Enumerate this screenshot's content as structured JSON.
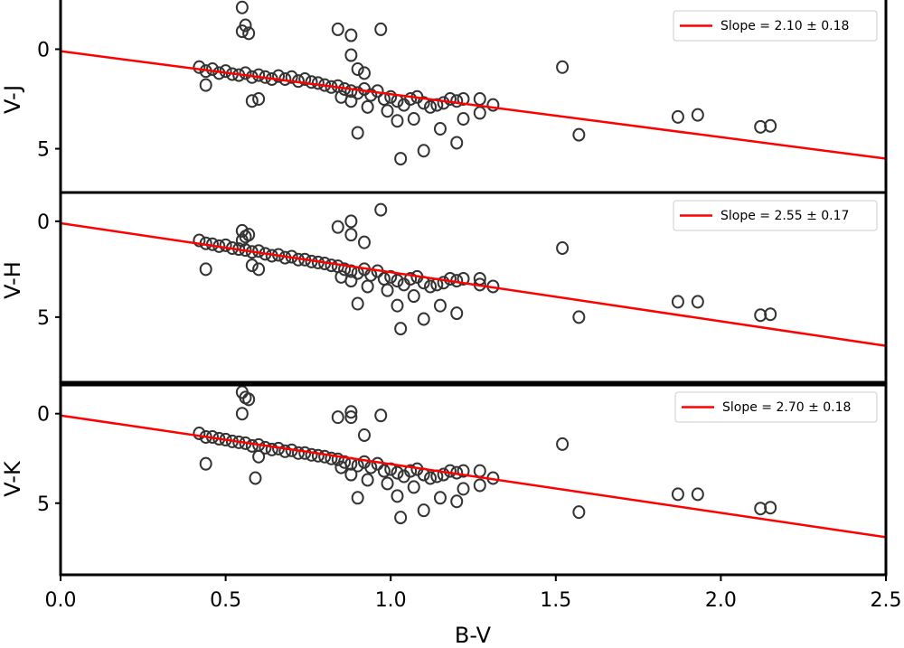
{
  "chart_data": {
    "type": "scatter",
    "layout": "3 vertically stacked panels sharing x-axis",
    "xlabel": "B-V",
    "xlim": [
      0.0,
      2.5
    ],
    "xticks": [
      "0.0",
      "0.5",
      "1.0",
      "1.5",
      "2.0",
      "2.5"
    ],
    "panels": [
      {
        "ylabel": "V-J",
        "ylim": [
          7.2,
          -2.7
        ],
        "yticks": [
          "0",
          "5"
        ],
        "legend": "Slope = 2.10 ± 0.18",
        "legend_placement": "top-right",
        "fit_line": {
          "x": [
            0.0,
            2.5
          ],
          "y": [
            0.1,
            5.5
          ]
        },
        "points": [
          [
            0.55,
            -2.1
          ],
          [
            0.56,
            -1.2
          ],
          [
            0.55,
            -0.9
          ],
          [
            0.57,
            -0.8
          ],
          [
            0.84,
            -1.0
          ],
          [
            0.88,
            -0.7
          ],
          [
            0.97,
            -1.0
          ],
          [
            0.88,
            0.3
          ],
          [
            0.9,
            1.0
          ],
          [
            0.92,
            1.2
          ],
          [
            0.42,
            0.9
          ],
          [
            0.44,
            1.1
          ],
          [
            0.46,
            1.0
          ],
          [
            0.44,
            1.8
          ],
          [
            0.48,
            1.2
          ],
          [
            0.5,
            1.1
          ],
          [
            0.52,
            1.25
          ],
          [
            0.54,
            1.3
          ],
          [
            0.56,
            1.2
          ],
          [
            0.58,
            1.4
          ],
          [
            0.6,
            1.3
          ],
          [
            0.62,
            1.4
          ],
          [
            0.64,
            1.5
          ],
          [
            0.66,
            1.35
          ],
          [
            0.68,
            1.5
          ],
          [
            0.7,
            1.4
          ],
          [
            0.72,
            1.6
          ],
          [
            0.74,
            1.5
          ],
          [
            0.76,
            1.65
          ],
          [
            0.78,
            1.7
          ],
          [
            0.8,
            1.8
          ],
          [
            0.82,
            1.9
          ],
          [
            0.84,
            1.85
          ],
          [
            0.86,
            2.0
          ],
          [
            0.88,
            2.1
          ],
          [
            0.9,
            2.2
          ],
          [
            0.92,
            2.0
          ],
          [
            0.94,
            2.3
          ],
          [
            0.96,
            2.1
          ],
          [
            0.98,
            2.5
          ],
          [
            1.0,
            2.4
          ],
          [
            1.02,
            2.6
          ],
          [
            1.04,
            2.8
          ],
          [
            1.06,
            2.5
          ],
          [
            1.08,
            2.4
          ],
          [
            1.1,
            2.7
          ],
          [
            1.12,
            2.9
          ],
          [
            1.14,
            2.8
          ],
          [
            1.16,
            2.7
          ],
          [
            1.18,
            2.5
          ],
          [
            1.2,
            2.6
          ],
          [
            1.22,
            2.5
          ],
          [
            0.6,
            2.5
          ],
          [
            0.58,
            2.6
          ],
          [
            0.85,
            2.4
          ],
          [
            0.88,
            2.6
          ],
          [
            0.93,
            2.9
          ],
          [
            0.99,
            3.1
          ],
          [
            1.02,
            3.6
          ],
          [
            1.07,
            3.5
          ],
          [
            1.15,
            4.0
          ],
          [
            1.2,
            4.7
          ],
          [
            1.1,
            5.1
          ],
          [
            1.03,
            5.5
          ],
          [
            0.9,
            4.2
          ],
          [
            1.22,
            3.5
          ],
          [
            1.27,
            3.2
          ],
          [
            1.27,
            2.5
          ],
          [
            1.31,
            2.8
          ],
          [
            1.52,
            0.9
          ],
          [
            1.57,
            4.3
          ],
          [
            1.87,
            3.4
          ],
          [
            1.93,
            3.3
          ],
          [
            2.12,
            3.9
          ],
          [
            2.15,
            3.85
          ]
        ]
      },
      {
        "ylabel": "V-H",
        "ylim": [
          8.4,
          -1.5
        ],
        "yticks": [
          "0",
          "5"
        ],
        "legend": "Slope = 2.55 ± 0.17",
        "legend_placement": "top-right",
        "fit_line": {
          "x": [
            0.0,
            2.5
          ],
          "y": [
            0.1,
            6.5
          ]
        },
        "points": [
          [
            0.55,
            0.5
          ],
          [
            0.56,
            0.8
          ],
          [
            0.57,
            0.7
          ],
          [
            0.55,
            1.0
          ],
          [
            0.84,
            0.3
          ],
          [
            0.88,
            0.0
          ],
          [
            0.97,
            -0.6
          ],
          [
            0.88,
            0.7
          ],
          [
            0.92,
            1.1
          ],
          [
            0.42,
            1.0
          ],
          [
            0.44,
            1.15
          ],
          [
            0.46,
            1.2
          ],
          [
            0.44,
            2.5
          ],
          [
            0.48,
            1.3
          ],
          [
            0.5,
            1.25
          ],
          [
            0.52,
            1.4
          ],
          [
            0.54,
            1.45
          ],
          [
            0.56,
            1.5
          ],
          [
            0.58,
            1.6
          ],
          [
            0.6,
            1.55
          ],
          [
            0.62,
            1.7
          ],
          [
            0.64,
            1.8
          ],
          [
            0.66,
            1.75
          ],
          [
            0.68,
            1.9
          ],
          [
            0.7,
            1.85
          ],
          [
            0.72,
            2.0
          ],
          [
            0.74,
            2.0
          ],
          [
            0.76,
            2.1
          ],
          [
            0.78,
            2.15
          ],
          [
            0.8,
            2.2
          ],
          [
            0.82,
            2.3
          ],
          [
            0.84,
            2.35
          ],
          [
            0.86,
            2.5
          ],
          [
            0.88,
            2.6
          ],
          [
            0.9,
            2.7
          ],
          [
            0.92,
            2.5
          ],
          [
            0.94,
            2.8
          ],
          [
            0.96,
            2.6
          ],
          [
            0.98,
            3.0
          ],
          [
            1.0,
            2.9
          ],
          [
            1.02,
            3.1
          ],
          [
            1.04,
            3.3
          ],
          [
            1.06,
            3.0
          ],
          [
            1.08,
            2.9
          ],
          [
            1.1,
            3.2
          ],
          [
            1.12,
            3.4
          ],
          [
            1.14,
            3.3
          ],
          [
            1.16,
            3.2
          ],
          [
            1.18,
            3.0
          ],
          [
            1.2,
            3.1
          ],
          [
            1.22,
            3.0
          ],
          [
            0.6,
            2.5
          ],
          [
            0.58,
            2.3
          ],
          [
            0.85,
            2.9
          ],
          [
            0.88,
            3.1
          ],
          [
            0.93,
            3.4
          ],
          [
            0.99,
            3.6
          ],
          [
            1.02,
            4.4
          ],
          [
            1.07,
            3.9
          ],
          [
            1.15,
            4.4
          ],
          [
            1.2,
            4.8
          ],
          [
            1.1,
            5.1
          ],
          [
            1.03,
            5.6
          ],
          [
            0.9,
            4.3
          ],
          [
            1.27,
            3.3
          ],
          [
            1.27,
            3.0
          ],
          [
            1.31,
            3.4
          ],
          [
            1.52,
            1.4
          ],
          [
            1.57,
            5.0
          ],
          [
            1.87,
            4.2
          ],
          [
            1.93,
            4.2
          ],
          [
            2.12,
            4.9
          ],
          [
            2.15,
            4.85
          ]
        ]
      },
      {
        "ylabel": "V-K",
        "ylim": [
          9.0,
          -1.6
        ],
        "yticks": [
          "0",
          "5"
        ],
        "legend": "Slope = 2.70 ± 0.18",
        "legend_placement": "top-right",
        "fit_line": {
          "x": [
            0.0,
            2.5
          ],
          "y": [
            0.1,
            6.9
          ]
        },
        "points": [
          [
            0.55,
            -1.2
          ],
          [
            0.56,
            -0.9
          ],
          [
            0.57,
            -0.8
          ],
          [
            0.55,
            0.0
          ],
          [
            0.84,
            0.2
          ],
          [
            0.88,
            -0.1
          ],
          [
            0.88,
            0.2
          ],
          [
            0.97,
            0.1
          ],
          [
            0.92,
            1.2
          ],
          [
            0.42,
            1.1
          ],
          [
            0.44,
            1.3
          ],
          [
            0.46,
            1.3
          ],
          [
            0.44,
            2.8
          ],
          [
            0.48,
            1.4
          ],
          [
            0.5,
            1.45
          ],
          [
            0.52,
            1.55
          ],
          [
            0.54,
            1.6
          ],
          [
            0.56,
            1.65
          ],
          [
            0.58,
            1.8
          ],
          [
            0.6,
            1.75
          ],
          [
            0.62,
            1.9
          ],
          [
            0.64,
            2.0
          ],
          [
            0.66,
            1.95
          ],
          [
            0.68,
            2.1
          ],
          [
            0.7,
            2.05
          ],
          [
            0.72,
            2.2
          ],
          [
            0.74,
            2.2
          ],
          [
            0.76,
            2.3
          ],
          [
            0.78,
            2.35
          ],
          [
            0.8,
            2.4
          ],
          [
            0.82,
            2.5
          ],
          [
            0.84,
            2.55
          ],
          [
            0.86,
            2.7
          ],
          [
            0.88,
            2.8
          ],
          [
            0.9,
            2.9
          ],
          [
            0.92,
            2.7
          ],
          [
            0.94,
            3.0
          ],
          [
            0.96,
            2.8
          ],
          [
            0.98,
            3.2
          ],
          [
            1.0,
            3.1
          ],
          [
            1.02,
            3.3
          ],
          [
            1.04,
            3.5
          ],
          [
            1.06,
            3.2
          ],
          [
            1.08,
            3.1
          ],
          [
            1.1,
            3.4
          ],
          [
            1.12,
            3.6
          ],
          [
            1.14,
            3.5
          ],
          [
            1.16,
            3.4
          ],
          [
            1.18,
            3.2
          ],
          [
            1.2,
            3.3
          ],
          [
            1.22,
            3.2
          ],
          [
            0.6,
            2.4
          ],
          [
            0.59,
            3.6
          ],
          [
            0.85,
            3.0
          ],
          [
            0.88,
            3.4
          ],
          [
            0.93,
            3.7
          ],
          [
            0.99,
            3.9
          ],
          [
            1.02,
            4.6
          ],
          [
            1.07,
            4.1
          ],
          [
            1.15,
            4.7
          ],
          [
            1.2,
            4.9
          ],
          [
            1.1,
            5.4
          ],
          [
            1.03,
            5.8
          ],
          [
            0.9,
            4.7
          ],
          [
            1.22,
            4.2
          ],
          [
            1.27,
            3.2
          ],
          [
            1.27,
            4.0
          ],
          [
            1.31,
            3.6
          ],
          [
            1.52,
            1.7
          ],
          [
            1.57,
            5.5
          ],
          [
            1.87,
            4.5
          ],
          [
            1.93,
            4.5
          ],
          [
            2.12,
            5.3
          ],
          [
            2.15,
            5.25
          ]
        ]
      }
    ]
  },
  "colors": {
    "fit_line": "#ff0000",
    "marker_edge": "#333333",
    "legend_border": "#cccccc",
    "axes": "#000000"
  }
}
